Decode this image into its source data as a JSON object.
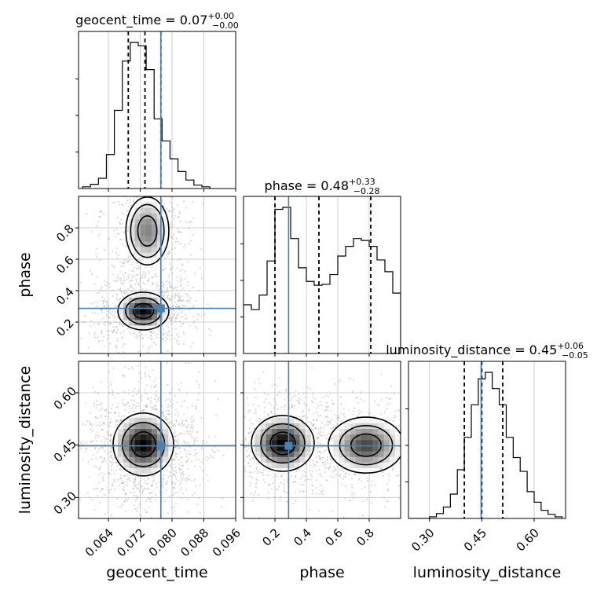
{
  "chart_data": {
    "type": "corner",
    "parameters": [
      "geocent_time",
      "phase",
      "luminosity_distance"
    ],
    "injection": {
      "geocent_time": 0.0772,
      "phase": 0.287,
      "luminosity_distance": 0.448
    },
    "colors": {
      "injection": "#4682b4",
      "hist": "#000000",
      "grid": "#c0c0c0",
      "scatter": "#888888"
    },
    "titles": {
      "geocent_time": {
        "text": "geocent_time = 0.07",
        "plus": "+0.00",
        "minus": "−0.00"
      },
      "phase": {
        "text": "phase = 0.48",
        "plus": "+0.33",
        "minus": "−0.28"
      },
      "luminosity_distance": {
        "text": "luminosity_distance = 0.45",
        "plus": "+0.06",
        "minus": "−0.05"
      }
    },
    "axes": {
      "geocent_time": {
        "range": [
          0.0565,
          0.096
        ],
        "ticks": [
          0.064,
          0.072,
          0.08,
          0.088,
          0.096
        ],
        "tick_labels": [
          "0.064",
          "0.072",
          "0.080",
          "0.088",
          "0.096"
        ]
      },
      "phase": {
        "range": [
          0.0,
          1.0
        ],
        "ticks": [
          0.2,
          0.4,
          0.6,
          0.8
        ],
        "tick_labels": [
          "0.2",
          "0.4",
          "0.6",
          "0.8"
        ],
        "y_tick_labels": [
          "0.2",
          "0.4",
          "0.6",
          "0.8"
        ]
      },
      "luminosity_distance": {
        "range": [
          0.24,
          0.69
        ],
        "ticks": [
          0.3,
          0.45,
          0.6
        ],
        "tick_labels": [
          "0.30",
          "0.45",
          "0.60"
        ]
      }
    },
    "histograms": {
      "geocent_time": {
        "bins": [
          0.0575,
          0.0595,
          0.0615,
          0.0635,
          0.0655,
          0.0675,
          0.0695,
          0.0715,
          0.0735,
          0.0755,
          0.0775,
          0.0795,
          0.0815,
          0.0835,
          0.0855,
          0.0875,
          0.0895
        ],
        "counts": [
          2,
          5,
          12,
          40,
          92,
          150,
          172,
          168,
          140,
          82,
          56,
          35,
          20,
          10,
          4,
          2
        ],
        "quantiles": [
          0.069,
          0.0732,
          0.0772
        ]
      },
      "phase": {
        "bins": [
          0.0,
          0.05,
          0.1,
          0.15,
          0.2,
          0.25,
          0.3,
          0.35,
          0.4,
          0.45,
          0.5,
          0.55,
          0.6,
          0.65,
          0.7,
          0.75,
          0.8,
          0.85,
          0.9,
          0.95,
          1.0
        ],
        "counts": [
          50,
          45,
          60,
          95,
          148,
          150,
          118,
          88,
          74,
          70,
          71,
          81,
          100,
          110,
          118,
          116,
          110,
          96,
          84,
          62
        ],
        "quantiles": [
          0.2,
          0.48,
          0.81
        ]
      },
      "luminosity_distance": {
        "bins": [
          0.24,
          0.26,
          0.28,
          0.3,
          0.32,
          0.34,
          0.36,
          0.38,
          0.4,
          0.42,
          0.44,
          0.46,
          0.48,
          0.5,
          0.52,
          0.54,
          0.56,
          0.58,
          0.6,
          0.62,
          0.64,
          0.66,
          0.68
        ],
        "counts": [
          0,
          0,
          0,
          2,
          6,
          14,
          30,
          60,
          100,
          140,
          172,
          180,
          160,
          140,
          100,
          75,
          58,
          33,
          20,
          10,
          5,
          2
        ],
        "quantiles": [
          0.4,
          0.45,
          0.51
        ]
      }
    },
    "joint_modes": [
      {
        "x": "geocent_time",
        "y": "phase",
        "centers": [
          [
            0.0728,
            0.27,
            0.0032,
            0.06,
            1.0
          ],
          [
            0.0738,
            0.78,
            0.003,
            0.12,
            0.55
          ]
        ]
      },
      {
        "x": "geocent_time",
        "y": "luminosity_distance",
        "centers": [
          [
            0.0728,
            0.452,
            0.0038,
            0.045,
            1.0
          ]
        ]
      },
      {
        "x": "phase",
        "y": "luminosity_distance",
        "centers": [
          [
            0.25,
            0.455,
            0.1,
            0.04,
            1.0
          ],
          [
            0.78,
            0.45,
            0.12,
            0.04,
            0.75
          ]
        ]
      }
    ]
  }
}
